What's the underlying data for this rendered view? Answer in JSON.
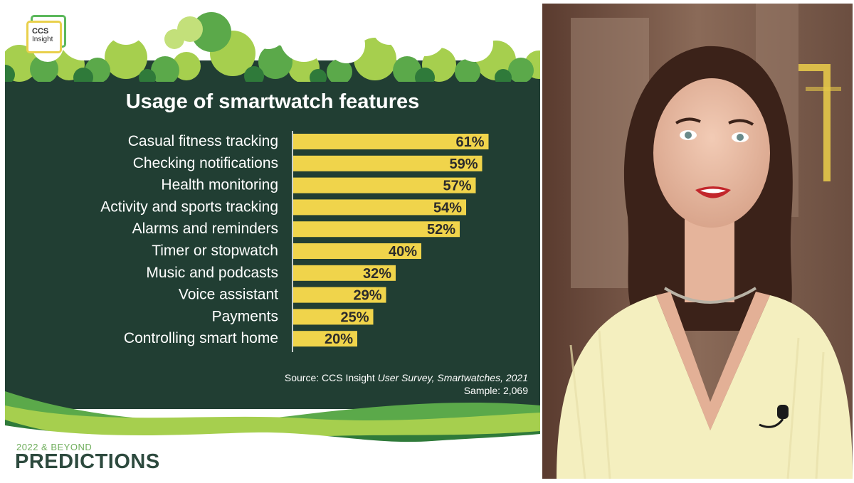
{
  "logo": {
    "line1": "CCS",
    "line2": "Insight"
  },
  "chart_data": {
    "type": "bar",
    "orientation": "horizontal",
    "title": "Usage of smartwatch features",
    "categories": [
      "Casual fitness tracking",
      "Checking notifications",
      "Health monitoring",
      "Activity and sports tracking",
      "Alarms and reminders",
      "Timer or stopwatch",
      "Music and podcasts",
      "Voice assistant",
      "Payments",
      "Controlling smart home"
    ],
    "values": [
      61,
      59,
      57,
      54,
      52,
      40,
      32,
      29,
      25,
      20
    ],
    "value_labels": [
      "61%",
      "59%",
      "57%",
      "54%",
      "52%",
      "40%",
      "32%",
      "29%",
      "25%",
      "20%"
    ],
    "unit": "%",
    "bar_color": "#f0d44b",
    "background_color": "#213e33"
  },
  "source": {
    "prefix": "Source: CCS Insight ",
    "italic": "User Survey, Smartwatches, 2021",
    "sample": "Sample: 2,069"
  },
  "brand": {
    "subtitle": "2022 & BEYOND",
    "title": "PREDICTIONS"
  },
  "video_icons": [
    "presenter-figure",
    "lapel-microphone-icon"
  ]
}
